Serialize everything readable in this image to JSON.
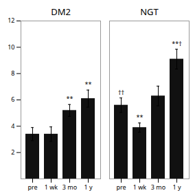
{
  "chart_data": {
    "type": "bar",
    "color": "#111111",
    "groups": [
      {
        "title": "DM2",
        "categories": [
          "pre",
          "1 wk",
          "3 mo",
          "1 y"
        ],
        "values": [
          3.4,
          3.4,
          5.2,
          6.1
        ],
        "errors": [
          0.5,
          0.55,
          0.45,
          0.65
        ],
        "annotations": [
          null,
          null,
          "**",
          "**"
        ]
      },
      {
        "title": "NGT",
        "categories": [
          "pre",
          "1 wk",
          "3 mo",
          "1 y"
        ],
        "values": [
          5.6,
          3.9,
          6.3,
          9.1
        ],
        "errors": [
          0.55,
          0.35,
          0.75,
          0.75
        ],
        "annotations": [
          "††",
          "**",
          null,
          "**†"
        ]
      }
    ],
    "ylim": [
      0,
      12
    ],
    "yticks": [
      2,
      4,
      6,
      8,
      10,
      12
    ]
  }
}
